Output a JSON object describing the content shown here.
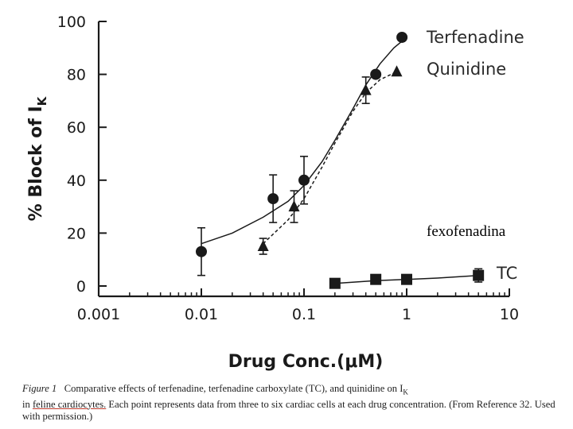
{
  "chart_data": {
    "type": "scatter",
    "xlabel": "Drug Conc.(μM)",
    "ylabel": "% Block of I",
    "ylabel_subscript": "K",
    "xscale": "log",
    "xlim": [
      0.001,
      10
    ],
    "ylim": [
      0,
      100
    ],
    "x_ticks": [
      0.001,
      0.01,
      0.1,
      1,
      10
    ],
    "x_tick_labels": [
      "0.001",
      "0.01",
      "0.1",
      "1",
      "10"
    ],
    "y_ticks": [
      0,
      20,
      40,
      60,
      80,
      100
    ],
    "y_tick_labels": [
      "0",
      "20",
      "40",
      "60",
      "80",
      "100"
    ],
    "grid": false,
    "legend_placement": "labels next to series ends",
    "series": [
      {
        "name": "Terfenadine",
        "marker": "circle",
        "fit": "solid",
        "points": [
          {
            "x": 0.01,
            "y": 13,
            "err": 9
          },
          {
            "x": 0.05,
            "y": 33,
            "err": 9
          },
          {
            "x": 0.1,
            "y": 40,
            "err": 9
          },
          {
            "x": 0.5,
            "y": 80,
            "err": 0
          },
          {
            "x": 0.9,
            "y": 94,
            "err": 0
          }
        ],
        "curve": [
          [
            0.01,
            16
          ],
          [
            0.02,
            20
          ],
          [
            0.04,
            26
          ],
          [
            0.07,
            32
          ],
          [
            0.1,
            38
          ],
          [
            0.15,
            47
          ],
          [
            0.2,
            55
          ],
          [
            0.3,
            67
          ],
          [
            0.4,
            76
          ],
          [
            0.55,
            84
          ],
          [
            0.75,
            90
          ],
          [
            1.0,
            94
          ]
        ]
      },
      {
        "name": "Quinidine",
        "marker": "triangle",
        "fit": "dashed",
        "points": [
          {
            "x": 0.04,
            "y": 15,
            "err": 3
          },
          {
            "x": 0.08,
            "y": 30,
            "err": 6
          },
          {
            "x": 0.4,
            "y": 74,
            "err": 5
          },
          {
            "x": 0.8,
            "y": 81,
            "err": 0
          }
        ],
        "curve": [
          [
            0.04,
            16
          ],
          [
            0.07,
            25
          ],
          [
            0.1,
            33
          ],
          [
            0.15,
            45
          ],
          [
            0.2,
            54
          ],
          [
            0.3,
            66
          ],
          [
            0.4,
            73
          ],
          [
            0.55,
            78
          ],
          [
            0.8,
            81
          ]
        ]
      },
      {
        "name": "TC",
        "marker": "square",
        "fit": "solid",
        "points": [
          {
            "x": 0.2,
            "y": 1,
            "err": 0
          },
          {
            "x": 0.5,
            "y": 2.5,
            "err": 0
          },
          {
            "x": 1,
            "y": 2.5,
            "err": 0
          },
          {
            "x": 5,
            "y": 4,
            "err": 2.5
          }
        ],
        "curve": [
          [
            0.2,
            1
          ],
          [
            0.5,
            2
          ],
          [
            1.0,
            2.5
          ],
          [
            2.0,
            3
          ],
          [
            5.0,
            4
          ]
        ]
      }
    ],
    "annotation": "fexofenadina"
  },
  "caption": {
    "figure_label": "Figure 1",
    "text_before_underline": "Comparative effects of terfenadine, terfenadine carboxylate (TC), and quinidine on I",
    "ik_subscript": "K",
    "text_line2_start": "in ",
    "underlined": "feline cardiocytes.",
    "text_after_underline": " Each point represents data from three to six cardiac cells at each drug concentration. (From Reference 32. Used with permission.)"
  },
  "colors": {
    "ink": "#1a1a1a",
    "underline": "#c0392b",
    "background": "#ffffff"
  }
}
